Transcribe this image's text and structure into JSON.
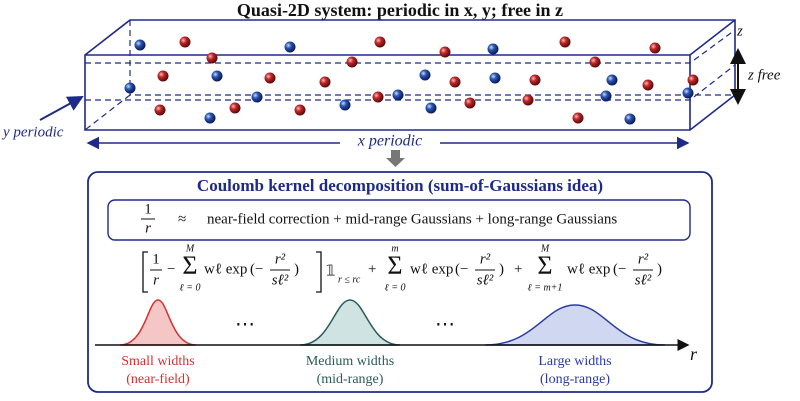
{
  "header": {
    "title": "Quasi-2D system: periodic in x, y; free in z"
  },
  "axes": {
    "z": "z",
    "z_free": "z free",
    "y_periodic": "y periodic",
    "x_periodic": "x periodic"
  },
  "panel": {
    "title": "Coulomb kernel decomposition (sum-of-Gaussians idea)",
    "summary": {
      "numerator": "1",
      "denominator": "r",
      "approx": "≈",
      "text": "near-field correction + mid-range Gaussians + long-range Gaussians"
    },
    "formula": [
      "1",
      "r",
      "−",
      "M",
      "Σ",
      "ℓ = 0",
      "wℓ exp",
      "(−",
      "r²",
      "sℓ²",
      ")",
      "𝟙",
      "r ≤ rc",
      "+",
      "m",
      "Σ",
      "ℓ = 0",
      "wℓ exp",
      "(−",
      "r²",
      "sℓ²",
      ")",
      "+",
      "M",
      "Σ",
      "ℓ = m+1",
      "wℓ exp",
      "(−",
      "r²",
      "sℓ²",
      ")"
    ],
    "ellipsis": [
      "⋯",
      "⋯"
    ],
    "axis_label": "r",
    "gaussians": [
      {
        "name": "Small widths",
        "note": "(near-field)"
      },
      {
        "name": "Medium widths",
        "note": "(mid-range)"
      },
      {
        "name": "Large widths",
        "note": "(long-range)"
      }
    ]
  }
}
